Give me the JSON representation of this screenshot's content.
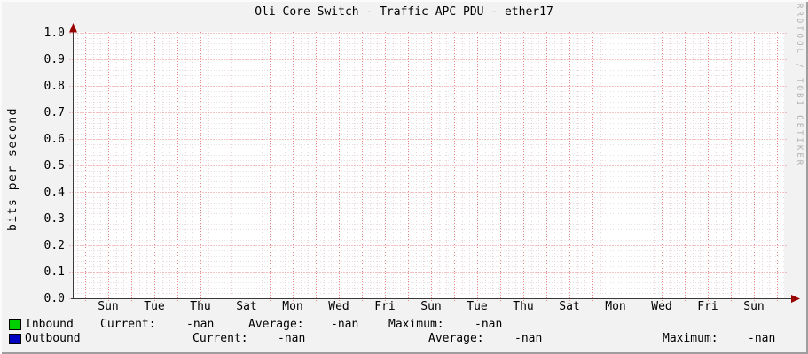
{
  "chart_data": {
    "type": "line",
    "title": "Oli Core Switch - Traffic APC PDU - ether17",
    "ylabel": "bits per second",
    "xlabel": "",
    "ylim": [
      0.0,
      1.0
    ],
    "grid": "on",
    "legend_position": "bottom",
    "y_tick_labels": [
      "1.0",
      "0.9",
      "0.8",
      "0.7",
      "0.6",
      "0.5",
      "0.4",
      "0.3",
      "0.2",
      "0.1",
      "0.0"
    ],
    "x_tick_labels": [
      "Sun",
      "Tue",
      "Thu",
      "Sat",
      "Mon",
      "Wed",
      "Fri",
      "Sun",
      "Tue",
      "Thu",
      "Sat",
      "Mon",
      "Wed",
      "Fri",
      "Sun"
    ],
    "no_data": true,
    "series": [
      {
        "name": "Inbound",
        "color": "#00cf00",
        "values": [],
        "current": "-nan",
        "average": "-nan",
        "maximum": "-nan"
      },
      {
        "name": "Outbound",
        "color": "#0000c0",
        "values": [],
        "current": "-nan",
        "average": "-nan",
        "maximum": "-nan"
      }
    ]
  },
  "legend": {
    "current_label": "Current:",
    "average_label": "Average:",
    "maximum_label": "Maximum:"
  },
  "watermark": "RRDTOOL / TOBI OETIKER",
  "colors": {
    "background": "#f2f2f2",
    "canvas": "#ffffff",
    "major_grid": "#e98585",
    "minor_grid_v": "#e8d6d6",
    "minor_grid_h": "#e9e1e1",
    "axis": "#3a3a3a",
    "arrow": "#990000",
    "watermark": "#b0b0b0"
  }
}
